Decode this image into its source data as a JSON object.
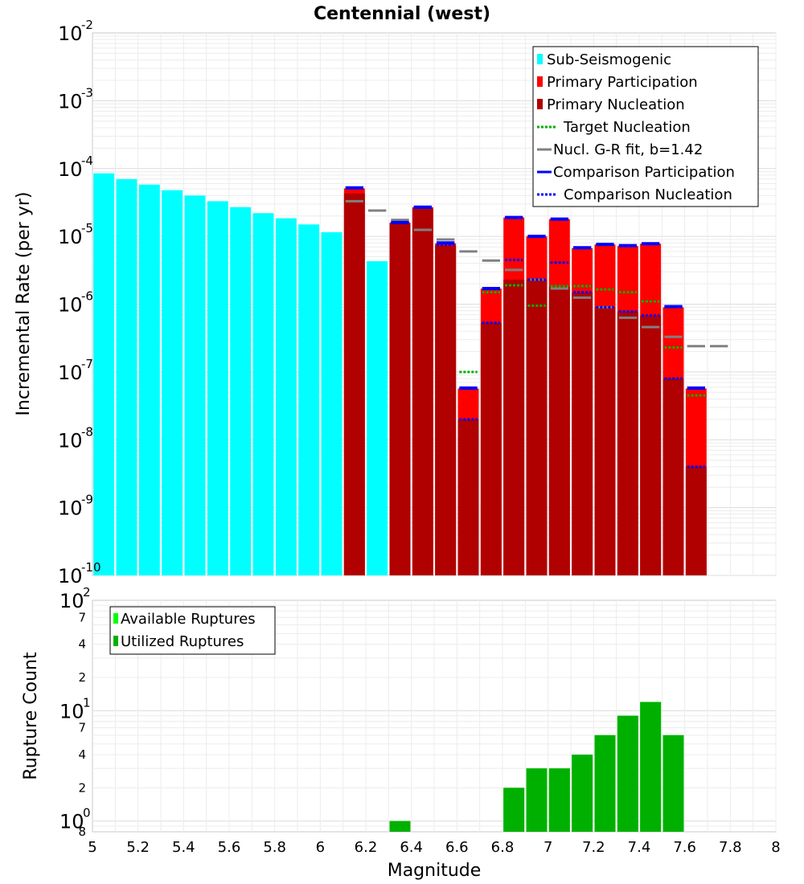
{
  "chart_data": [
    {
      "type": "bar",
      "title": "Centennial (west)",
      "xlabel": "Magnitude",
      "ylabel": "Incremental Rate (per yr)",
      "yscale": "log",
      "ylim": [
        1e-10,
        0.01
      ],
      "xlim": [
        5,
        8
      ],
      "bin_width": 0.1,
      "y_ticks": [
        {
          "base": "10",
          "exp": "-10"
        },
        {
          "base": "10",
          "exp": "-9"
        },
        {
          "base": "10",
          "exp": "-8"
        },
        {
          "base": "10",
          "exp": "-7"
        },
        {
          "base": "10",
          "exp": "-6"
        },
        {
          "base": "10",
          "exp": "-5"
        },
        {
          "base": "10",
          "exp": "-4"
        },
        {
          "base": "10",
          "exp": "-3"
        },
        {
          "base": "10",
          "exp": "-2"
        }
      ],
      "legend": [
        {
          "label": "Sub-Seismogenic",
          "color": "#00ffff",
          "style": "bar"
        },
        {
          "label": "Primary Participation",
          "color": "#ff0000",
          "style": "bar"
        },
        {
          "label": "Primary Nucleation",
          "color": "#b00000",
          "style": "bar"
        },
        {
          "label": "Target Nucleation",
          "color": "#00b000",
          "style": "dotted"
        },
        {
          "label": "Nucl. G-R fit, b=1.42",
          "color": "#808080",
          "style": "solid"
        },
        {
          "label": "Comparison Participation",
          "color": "#0000ff",
          "style": "solid"
        },
        {
          "label": "Comparison Nucleation",
          "color": "#0000ff",
          "style": "dotted"
        }
      ],
      "series": [
        {
          "name": "Sub-Seismogenic",
          "color": "#00ffff",
          "points": [
            [
              5.05,
              8.5e-05
            ],
            [
              5.15,
              7e-05
            ],
            [
              5.25,
              5.8e-05
            ],
            [
              5.35,
              4.8e-05
            ],
            [
              5.45,
              4e-05
            ],
            [
              5.55,
              3.3e-05
            ],
            [
              5.65,
              2.7e-05
            ],
            [
              5.75,
              2.2e-05
            ],
            [
              5.85,
              1.85e-05
            ],
            [
              5.95,
              1.5e-05
            ],
            [
              6.05,
              1.15e-05
            ],
            [
              6.25,
              4.3e-06
            ]
          ]
        },
        {
          "name": "Primary Participation",
          "color": "#ff0000",
          "points": [
            [
              6.15,
              5.1e-05
            ],
            [
              6.35,
              1.6e-05
            ],
            [
              6.45,
              2.7e-05
            ],
            [
              6.55,
              7.9e-06
            ],
            [
              6.65,
              5.7e-08
            ],
            [
              6.75,
              1.7e-06
            ],
            [
              6.85,
              1.9e-05
            ],
            [
              6.95,
              1e-05
            ],
            [
              7.05,
              1.8e-05
            ],
            [
              7.15,
              6.7e-06
            ],
            [
              7.25,
              7.6e-06
            ],
            [
              7.35,
              7.2e-06
            ],
            [
              7.45,
              7.8e-06
            ],
            [
              7.55,
              9e-07
            ],
            [
              7.65,
              5.7e-08
            ]
          ]
        },
        {
          "name": "Primary Nucleation",
          "color": "#b00000",
          "points": [
            [
              6.15,
              4.3e-05
            ],
            [
              6.35,
              1.55e-05
            ],
            [
              6.45,
              2.6e-05
            ],
            [
              6.55,
              7.3e-06
            ],
            [
              6.65,
              2e-08
            ],
            [
              6.75,
              5.3e-07
            ],
            [
              6.85,
              2.3e-06
            ],
            [
              6.95,
              2.3e-06
            ],
            [
              7.05,
              1.8e-06
            ],
            [
              7.15,
              1.5e-06
            ],
            [
              7.25,
              9e-07
            ],
            [
              7.35,
              7.8e-07
            ],
            [
              7.45,
              6.8e-07
            ],
            [
              7.55,
              8e-08
            ],
            [
              7.65,
              4e-09
            ]
          ]
        },
        {
          "name": "Target Nucleation",
          "color": "#00b000",
          "points": [
            [
              6.65,
              1e-07
            ],
            [
              6.75,
              1.5e-06
            ],
            [
              6.85,
              1.9e-06
            ],
            [
              6.95,
              9.5e-07
            ],
            [
              7.05,
              1.85e-06
            ],
            [
              7.15,
              1.85e-06
            ],
            [
              7.25,
              1.65e-06
            ],
            [
              7.35,
              1.5e-06
            ],
            [
              7.45,
              1.1e-06
            ],
            [
              7.55,
              2.3e-07
            ],
            [
              7.65,
              4.5e-08
            ]
          ]
        },
        {
          "name": "Nucl. G-R fit, b=1.42",
          "color": "#808080",
          "points": [
            [
              6.15,
              3.3e-05
            ],
            [
              6.25,
              2.4e-05
            ],
            [
              6.35,
              1.75e-05
            ],
            [
              6.45,
              1.25e-05
            ],
            [
              6.55,
              9e-06
            ],
            [
              6.65,
              6e-06
            ],
            [
              6.75,
              4.4e-06
            ],
            [
              6.85,
              3.2e-06
            ],
            [
              6.95,
              2.3e-06
            ],
            [
              7.05,
              1.7e-06
            ],
            [
              7.15,
              1.25e-06
            ],
            [
              7.25,
              9e-07
            ],
            [
              7.35,
              6.3e-07
            ],
            [
              7.45,
              4.6e-07
            ],
            [
              7.55,
              3.3e-07
            ],
            [
              7.65,
              2.4e-07
            ],
            [
              7.75,
              2.4e-07
            ]
          ]
        },
        {
          "name": "Comparison Participation",
          "color": "#0000ff",
          "points": [
            [
              6.15,
              5.2e-05
            ],
            [
              6.35,
              1.6e-05
            ],
            [
              6.45,
              2.7e-05
            ],
            [
              6.55,
              8e-06
            ],
            [
              6.65,
              5.8e-08
            ],
            [
              6.75,
              1.7e-06
            ],
            [
              6.85,
              1.9e-05
            ],
            [
              6.95,
              1e-05
            ],
            [
              7.05,
              1.8e-05
            ],
            [
              7.15,
              6.8e-06
            ],
            [
              7.25,
              7.6e-06
            ],
            [
              7.35,
              7.3e-06
            ],
            [
              7.45,
              7.8e-06
            ],
            [
              7.55,
              9.2e-07
            ],
            [
              7.65,
              5.8e-08
            ]
          ]
        },
        {
          "name": "Comparison Nucleation",
          "color": "#0000ff",
          "points": [
            [
              6.35,
              1.6e-05
            ],
            [
              6.45,
              2.65e-05
            ],
            [
              6.55,
              7.5e-06
            ],
            [
              6.65,
              2e-08
            ],
            [
              6.75,
              5.3e-07
            ],
            [
              6.85,
              4.5e-06
            ],
            [
              6.95,
              2.3e-06
            ],
            [
              7.05,
              4.1e-06
            ],
            [
              7.15,
              1.5e-06
            ],
            [
              7.25,
              9e-07
            ],
            [
              7.35,
              7.8e-07
            ],
            [
              7.45,
              6.8e-07
            ],
            [
              7.55,
              8e-08
            ],
            [
              7.65,
              4e-09
            ]
          ]
        }
      ]
    },
    {
      "type": "bar",
      "title": "",
      "xlabel": "Magnitude",
      "ylabel": "Rupture Count",
      "yscale": "log",
      "ylim": [
        0.8,
        100
      ],
      "xlim": [
        5,
        8
      ],
      "bin_width": 0.1,
      "x_ticks": [
        "5",
        "5.2",
        "5.4",
        "5.6",
        "5.8",
        "6",
        "6.2",
        "6.4",
        "6.6",
        "6.8",
        "7",
        "7.2",
        "7.4",
        "7.6",
        "7.8",
        "8"
      ],
      "y_major_ticks": [
        {
          "value": 1,
          "base": "10",
          "exp": "0"
        },
        {
          "value": 10,
          "base": "10",
          "exp": "1"
        },
        {
          "value": 100,
          "base": "10",
          "exp": "2"
        }
      ],
      "y_minor_ticks": [
        {
          "value": 2,
          "label": "2"
        },
        {
          "value": 4,
          "label": "4"
        },
        {
          "value": 7,
          "label": "7"
        },
        {
          "value": 20,
          "label": "2"
        },
        {
          "value": 40,
          "label": "4"
        },
        {
          "value": 70,
          "label": "7"
        }
      ],
      "y_bottom_label": "8",
      "legend": [
        {
          "label": "Available Ruptures",
          "color": "#00ff00",
          "style": "bar"
        },
        {
          "label": "Utilized Ruptures",
          "color": "#00b000",
          "style": "bar"
        }
      ],
      "series": [
        {
          "name": "Available Ruptures",
          "color": "#00ff00",
          "points": [
            [
              6.35,
              1
            ],
            [
              6.85,
              2
            ],
            [
              6.95,
              3
            ],
            [
              7.05,
              3
            ],
            [
              7.15,
              4
            ],
            [
              7.25,
              6
            ],
            [
              7.35,
              9
            ],
            [
              7.45,
              12
            ],
            [
              7.55,
              6
            ]
          ]
        },
        {
          "name": "Utilized Ruptures",
          "color": "#00b000",
          "points": [
            [
              6.35,
              1
            ],
            [
              6.85,
              2
            ],
            [
              6.95,
              3
            ],
            [
              7.05,
              3
            ],
            [
              7.15,
              4
            ],
            [
              7.25,
              6
            ],
            [
              7.35,
              9
            ],
            [
              7.45,
              12
            ],
            [
              7.55,
              6
            ]
          ]
        }
      ]
    }
  ]
}
